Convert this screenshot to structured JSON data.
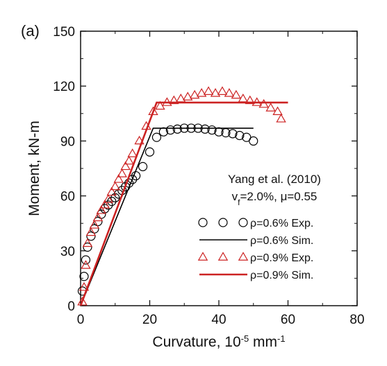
{
  "panel_label": "(a)",
  "chart_data": {
    "type": "scatter",
    "xlabel": "Curvature, 10",
    "xlabel_sup": "-5",
    "xlabel_unit": " mm",
    "xlabel_unit_sup": "-1",
    "ylabel": "Moment, kN-m",
    "xlim": [
      0,
      80
    ],
    "ylim": [
      0,
      150
    ],
    "xticks": [
      0,
      20,
      40,
      60,
      80
    ],
    "yticks": [
      0,
      30,
      60,
      90,
      120,
      150
    ],
    "grid": false,
    "legend": {
      "position": "right-middle",
      "title_line1": "Yang et al. (2010)",
      "title_line2_prefix": "v",
      "title_line2_sub": "f",
      "title_line2_rest": "=2.0%, μ=0.55",
      "entries": [
        {
          "label": "ρ=0.6% Exp.",
          "style": "circle",
          "color": "#000000"
        },
        {
          "label": "ρ=0.6% Sim.",
          "style": "line",
          "color": "#000000"
        },
        {
          "label": "ρ=0.9% Exp.",
          "style": "triangle",
          "color": "#cc2222"
        },
        {
          "label": "ρ=0.9% Sim.",
          "style": "line-thick",
          "color": "#cc2222"
        }
      ]
    },
    "series": [
      {
        "name": "ρ=0.6% Exp.",
        "style": "circle",
        "color": "#000000",
        "x": [
          0.5,
          1,
          1.5,
          2,
          3,
          4,
          5,
          6,
          7,
          8,
          9,
          10,
          11,
          12,
          13,
          14,
          15,
          16,
          18,
          20,
          22,
          24,
          26,
          28,
          30,
          32,
          34,
          36,
          38,
          40,
          42,
          44,
          46,
          48,
          50
        ],
        "y": [
          8,
          16,
          25,
          32,
          38,
          42,
          46,
          50,
          53,
          55,
          57,
          59,
          61,
          63,
          65,
          67,
          69,
          71,
          76,
          84,
          92,
          95,
          96,
          96.5,
          97,
          97,
          97,
          96.5,
          96,
          95,
          94.5,
          94,
          93,
          92,
          90
        ]
      },
      {
        "name": "ρ=0.6% Sim.",
        "style": "line",
        "color": "#000000",
        "x": [
          0,
          21,
          50
        ],
        "y": [
          0,
          97,
          97
        ]
      },
      {
        "name": "ρ=0.9% Exp.",
        "style": "triangle",
        "color": "#cc2222",
        "x": [
          0.5,
          1,
          1.5,
          2,
          3,
          4,
          5,
          6,
          7,
          8,
          9,
          10,
          11,
          12,
          13,
          14,
          15,
          17,
          19,
          21,
          23,
          25,
          27,
          29,
          31,
          33,
          35,
          37,
          39,
          41,
          43,
          45,
          47,
          49,
          51,
          53,
          55,
          57,
          58
        ],
        "y": [
          2,
          10,
          22,
          34,
          40,
          44,
          48,
          52,
          55,
          58,
          62,
          65,
          69,
          72,
          76,
          79,
          83,
          90,
          98,
          106,
          109,
          111,
          112,
          113,
          114,
          115,
          116,
          117,
          116,
          117,
          116,
          115,
          113,
          112,
          111,
          110,
          108,
          106,
          102
        ]
      },
      {
        "name": "ρ=0.9% Sim.",
        "style": "line-thick",
        "color": "#cc2222",
        "x": [
          0,
          22,
          60
        ],
        "y": [
          0,
          111,
          111
        ]
      }
    ]
  }
}
